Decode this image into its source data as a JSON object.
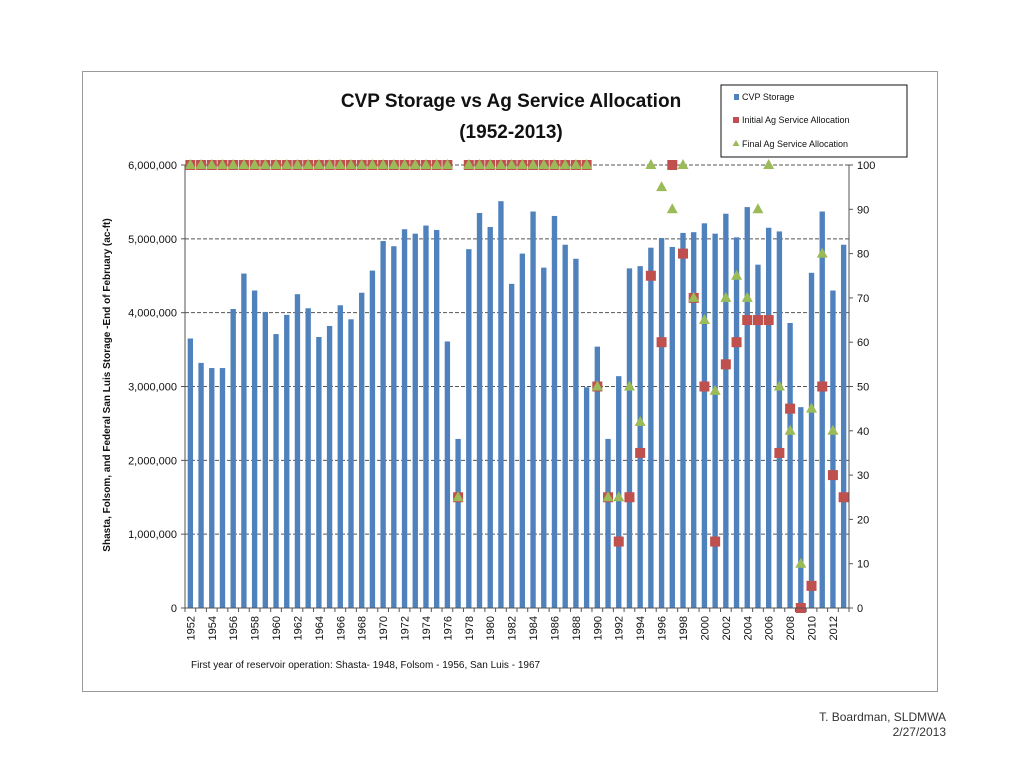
{
  "chart_data": {
    "type": "bar",
    "title": "CVP Storage vs Ag Service Allocation",
    "subtitle": "(1952-2013)",
    "ylabel": "Shasta, Folsom, and Federal San Luis Storage -End of February (ac-ft)",
    "ylim": [
      0,
      6000000
    ],
    "yticks": [
      "0",
      "1,000,000",
      "2,000,000",
      "3,000,000",
      "4,000,000",
      "5,000,000",
      "6,000,000"
    ],
    "y2lim": [
      0,
      100
    ],
    "y2ticks": [
      "0",
      "10",
      "20",
      "30",
      "40",
      "50",
      "60",
      "70",
      "80",
      "90",
      "100"
    ],
    "grid": true,
    "legend_position": "top-right",
    "footnote": "First year of reservoir operation:  Shasta- 1948, Folsom - 1956, San Luis - 1967",
    "colors": {
      "storage": "#4f81bd",
      "initial": "#c0504d",
      "final": "#9bbb59"
    },
    "x": [
      1952,
      1953,
      1954,
      1955,
      1956,
      1957,
      1958,
      1959,
      1960,
      1961,
      1962,
      1963,
      1964,
      1965,
      1966,
      1967,
      1968,
      1969,
      1970,
      1971,
      1972,
      1973,
      1974,
      1975,
      1976,
      1977,
      1978,
      1979,
      1980,
      1981,
      1982,
      1983,
      1984,
      1985,
      1986,
      1987,
      1988,
      1989,
      1990,
      1991,
      1992,
      1993,
      1994,
      1995,
      1996,
      1997,
      1998,
      1999,
      2000,
      2001,
      2002,
      2003,
      2004,
      2005,
      2006,
      2007,
      2008,
      2009,
      2010,
      2011,
      2012,
      2013
    ],
    "xtick_labels": [
      "1952",
      "1954",
      "1956",
      "1958",
      "1960",
      "1962",
      "1964",
      "1966",
      "1968",
      "1970",
      "1972",
      "1974",
      "1976",
      "1978",
      "1980",
      "1982",
      "1984",
      "1986",
      "1988",
      "1990",
      "1992",
      "1994",
      "1996",
      "1998",
      "2000",
      "2002",
      "2004",
      "2006",
      "2008",
      "2010",
      "2012"
    ],
    "series": [
      {
        "name": "CVP Storage",
        "axis": "left",
        "kind": "bar",
        "values": [
          3650000,
          3320000,
          3250000,
          3250000,
          4050000,
          4530000,
          4300000,
          4010000,
          3710000,
          3970000,
          4250000,
          4060000,
          3670000,
          3820000,
          4100000,
          3910000,
          4270000,
          4570000,
          4970000,
          4900000,
          5130000,
          5070000,
          5180000,
          5120000,
          3610000,
          2290000,
          4860000,
          5350000,
          5160000,
          5510000,
          4390000,
          4800000,
          5370000,
          4610000,
          5310000,
          4920000,
          4730000,
          2990000,
          3540000,
          2290000,
          3140000,
          4600000,
          4630000,
          4880000,
          5010000,
          4890000,
          5080000,
          5090000,
          5210000,
          5070000,
          5340000,
          5020000,
          5430000,
          4650000,
          5150000,
          5100000,
          3860000,
          2720000,
          4540000,
          5370000,
          4300000,
          4920000
        ]
      },
      {
        "name": "Initial Ag Service Allocation",
        "axis": "right",
        "kind": "marker",
        "values": [
          100,
          100,
          100,
          100,
          100,
          100,
          100,
          100,
          100,
          100,
          100,
          100,
          100,
          100,
          100,
          100,
          100,
          100,
          100,
          100,
          100,
          100,
          100,
          100,
          100,
          25,
          100,
          100,
          100,
          100,
          100,
          100,
          100,
          100,
          100,
          100,
          100,
          100,
          50,
          25,
          15,
          25,
          35,
          75,
          60,
          100,
          80,
          70,
          50,
          15,
          55,
          60,
          65,
          65,
          65,
          35,
          45,
          0,
          5,
          50,
          30,
          25
        ]
      },
      {
        "name": "Final Ag Service Allocation",
        "axis": "right",
        "kind": "marker",
        "values": [
          100,
          100,
          100,
          100,
          100,
          100,
          100,
          100,
          100,
          100,
          100,
          100,
          100,
          100,
          100,
          100,
          100,
          100,
          100,
          100,
          100,
          100,
          100,
          100,
          100,
          25,
          100,
          100,
          100,
          100,
          100,
          100,
          100,
          100,
          100,
          100,
          100,
          100,
          50,
          25,
          25,
          50,
          42,
          100,
          95,
          90,
          100,
          70,
          65,
          49,
          70,
          75,
          70,
          90,
          100,
          50,
          40,
          10,
          45,
          80,
          40,
          null
        ]
      }
    ]
  },
  "credit": {
    "author": "T. Boardman, SLDMWA",
    "date": "2/27/2013"
  }
}
